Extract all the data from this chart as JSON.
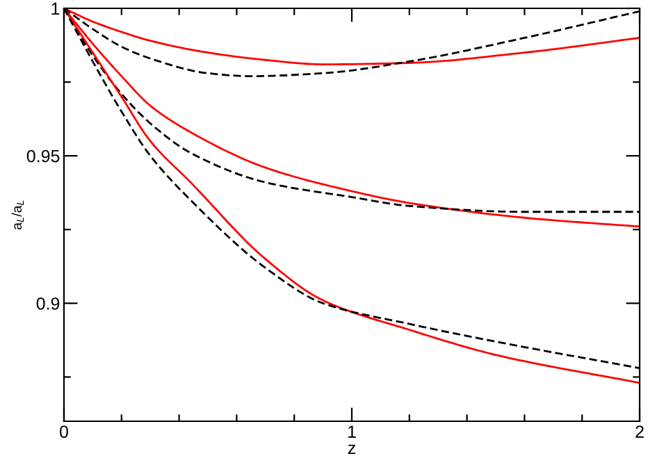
{
  "chart_data": {
    "type": "line",
    "xlabel": "z",
    "ylabel": "a$_{L}$/a$_{L}$",
    "xlim": [
      0,
      2
    ],
    "ylim": [
      0.86,
      1
    ],
    "xticks": [
      0,
      {
        "value": 0.2,
        "label": null
      },
      {
        "value": 0.4,
        "label": null
      },
      {
        "value": 0.6,
        "label": null
      },
      {
        "value": 0.8,
        "label": null
      },
      1,
      {
        "value": 1.2,
        "label": null
      },
      {
        "value": 1.4,
        "label": null
      },
      {
        "value": 1.6,
        "label": null
      },
      {
        "value": 1.8,
        "label": null
      },
      2
    ],
    "yticks": [
      {
        "value": 0.875,
        "label": null
      },
      0.9,
      {
        "value": 0.925,
        "label": null
      },
      0.95,
      {
        "value": 0.975,
        "label": null
      },
      1
    ],
    "grid": false,
    "legend": false,
    "marker": "none",
    "series": [
      {
        "color": "#ff0000",
        "line_style": "solid",
        "x": [
          0,
          0.1,
          0.2,
          0.3,
          0.5,
          0.7,
          0.9,
          1.2,
          1.6,
          2
        ],
        "values": [
          1,
          0.9955,
          0.992,
          0.989,
          0.985,
          0.9825,
          0.981,
          0.9815,
          0.985,
          0.99
        ]
      },
      {
        "color": "#000000",
        "line_style": "dashed",
        "x": [
          0,
          0.1,
          0.2,
          0.3,
          0.5,
          0.65,
          0.9,
          1.2,
          1.6,
          2
        ],
        "values": [
          1,
          0.993,
          0.987,
          0.983,
          0.978,
          0.977,
          0.978,
          0.982,
          0.99,
          0.999
        ]
      },
      {
        "color": "#ff0000",
        "line_style": "solid",
        "x": [
          0,
          0.1,
          0.2,
          0.3,
          0.44,
          0.7,
          1,
          1.2,
          1.6,
          2
        ],
        "values": [
          1,
          0.988,
          0.977,
          0.967,
          0.958,
          0.946,
          0.938,
          0.934,
          0.929,
          0.926
        ]
      },
      {
        "color": "#000000",
        "line_style": "dashed",
        "x": [
          0,
          0.1,
          0.2,
          0.3,
          0.44,
          0.7,
          1,
          1.2,
          1.6,
          2
        ],
        "values": [
          1,
          0.984,
          0.971,
          0.961,
          0.951,
          0.941,
          0.936,
          0.933,
          0.931,
          0.931
        ]
      },
      {
        "color": "#ff0000",
        "line_style": "solid",
        "x": [
          0,
          0.1,
          0.2,
          0.3,
          0.44,
          0.7,
          0.9,
          1.2,
          1.5,
          2
        ],
        "values": [
          1,
          0.985,
          0.97,
          0.955,
          0.941,
          0.915,
          0.901,
          0.891,
          0.8825,
          0.873
        ]
      },
      {
        "color": "#000000",
        "line_style": "dashed",
        "x": [
          0,
          0.1,
          0.2,
          0.3,
          0.44,
          0.7,
          0.9,
          1.2,
          1.5,
          2
        ],
        "values": [
          1,
          0.982,
          0.965,
          0.95,
          0.935,
          0.912,
          0.9,
          0.893,
          0.887,
          0.878
        ]
      }
    ]
  }
}
